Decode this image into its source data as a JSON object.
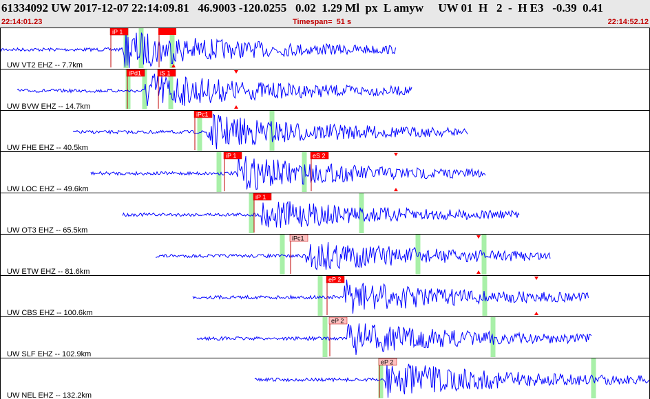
{
  "header": {
    "title": "61334092 UW 2017-12-07 22:14:09.81   46.9003 -120.0255   0.02  1.29 Ml  px  L amyw     UW 01  H   2  -  H E3   -0.39  0.41",
    "start_time": "22:14:01.23",
    "timespan_label": "Timespan=  51 s",
    "end_time": "22:14:52.12"
  },
  "colors": {
    "trace": "#0000ff",
    "pick_red": "#ff0000",
    "pick_pink": "#ffc0c0",
    "band_green": "#a8f0a8",
    "header_bg": "#e8e8e8",
    "time_text": "#c00000"
  },
  "traces": [
    {
      "label": "UW VT2 EHZ -- 7.7km",
      "wave_start": 0,
      "wave_end": 575,
      "onset": 180,
      "amp": 26,
      "bands": [
        183,
        205,
        250
      ],
      "picks": [
        {
          "text": "iP 1",
          "x": 160,
          "style": "red"
        },
        {
          "text": "",
          "x": 230,
          "style": "red"
        }
      ],
      "marks": [
        252
      ]
    },
    {
      "label": "UW BVW EHZ -- 14.7km",
      "wave_start": 25,
      "wave_end": 598,
      "onset": 210,
      "amp": 26,
      "bands": [
        186,
        210,
        248
      ],
      "picks": [
        {
          "text": "iPd1",
          "x": 184,
          "style": "red"
        },
        {
          "text": "iS 1",
          "x": 229,
          "style": "red"
        }
      ],
      "marks": [
        343
      ]
    },
    {
      "label": "UW FHE EHZ -- 40.5km",
      "wave_start": 106,
      "wave_end": 680,
      "onset": 300,
      "amp": 24,
      "bands": [
        290,
        395
      ],
      "picks": [
        {
          "text": "iPc1",
          "x": 282,
          "style": "red"
        }
      ],
      "marks": []
    },
    {
      "label": "UW LOC EHZ -- 49.6km",
      "wave_start": 132,
      "wave_end": 706,
      "onset": 345,
      "amp": 23,
      "bands": [
        318,
        442
      ],
      "picks": [
        {
          "text": "iP 1",
          "x": 325,
          "style": "red"
        },
        {
          "text": "eS 2",
          "x": 451,
          "style": "red"
        }
      ],
      "marks": [
        575
      ]
    },
    {
      "label": "UW OT3 EHZ -- 65.5km",
      "wave_start": 178,
      "wave_end": 755,
      "onset": 380,
      "amp": 20,
      "bands": [
        365,
        525
      ],
      "picks": [
        {
          "text": "iP 1",
          "x": 368,
          "style": "red"
        }
      ],
      "marks": []
    },
    {
      "label": "UW ETW EHZ -- 81.6km",
      "wave_start": 226,
      "wave_end": 800,
      "onset": 445,
      "amp": 22,
      "bands": [
        410,
        607,
        703
      ],
      "picks": [
        {
          "text": "iPc1",
          "x": 421,
          "style": "pink"
        }
      ],
      "marks": [
        695
      ]
    },
    {
      "label": "UW CBS EHZ -- 100.6km",
      "wave_start": 280,
      "wave_end": 855,
      "onset": 500,
      "amp": 22,
      "bands": [
        465,
        704
      ],
      "picks": [
        {
          "text": "eP 2",
          "x": 474,
          "style": "red"
        }
      ],
      "marks": [
        779
      ]
    },
    {
      "label": "UW SLF EHZ -- 102.9km",
      "wave_start": 286,
      "wave_end": 860,
      "onset": 505,
      "amp": 22,
      "bands": [
        472,
        716
      ],
      "picks": [
        {
          "text": "eP 2",
          "x": 478,
          "style": "pink"
        }
      ],
      "marks": []
    },
    {
      "label": "UW NEL EHZ -- 132.2km",
      "wave_start": 370,
      "wave_end": 944,
      "onset": 560,
      "amp": 24,
      "bands": [
        553,
        862
      ],
      "picks": [
        {
          "text": "eP 2",
          "x": 550,
          "style": "pink"
        }
      ],
      "marks": []
    }
  ]
}
